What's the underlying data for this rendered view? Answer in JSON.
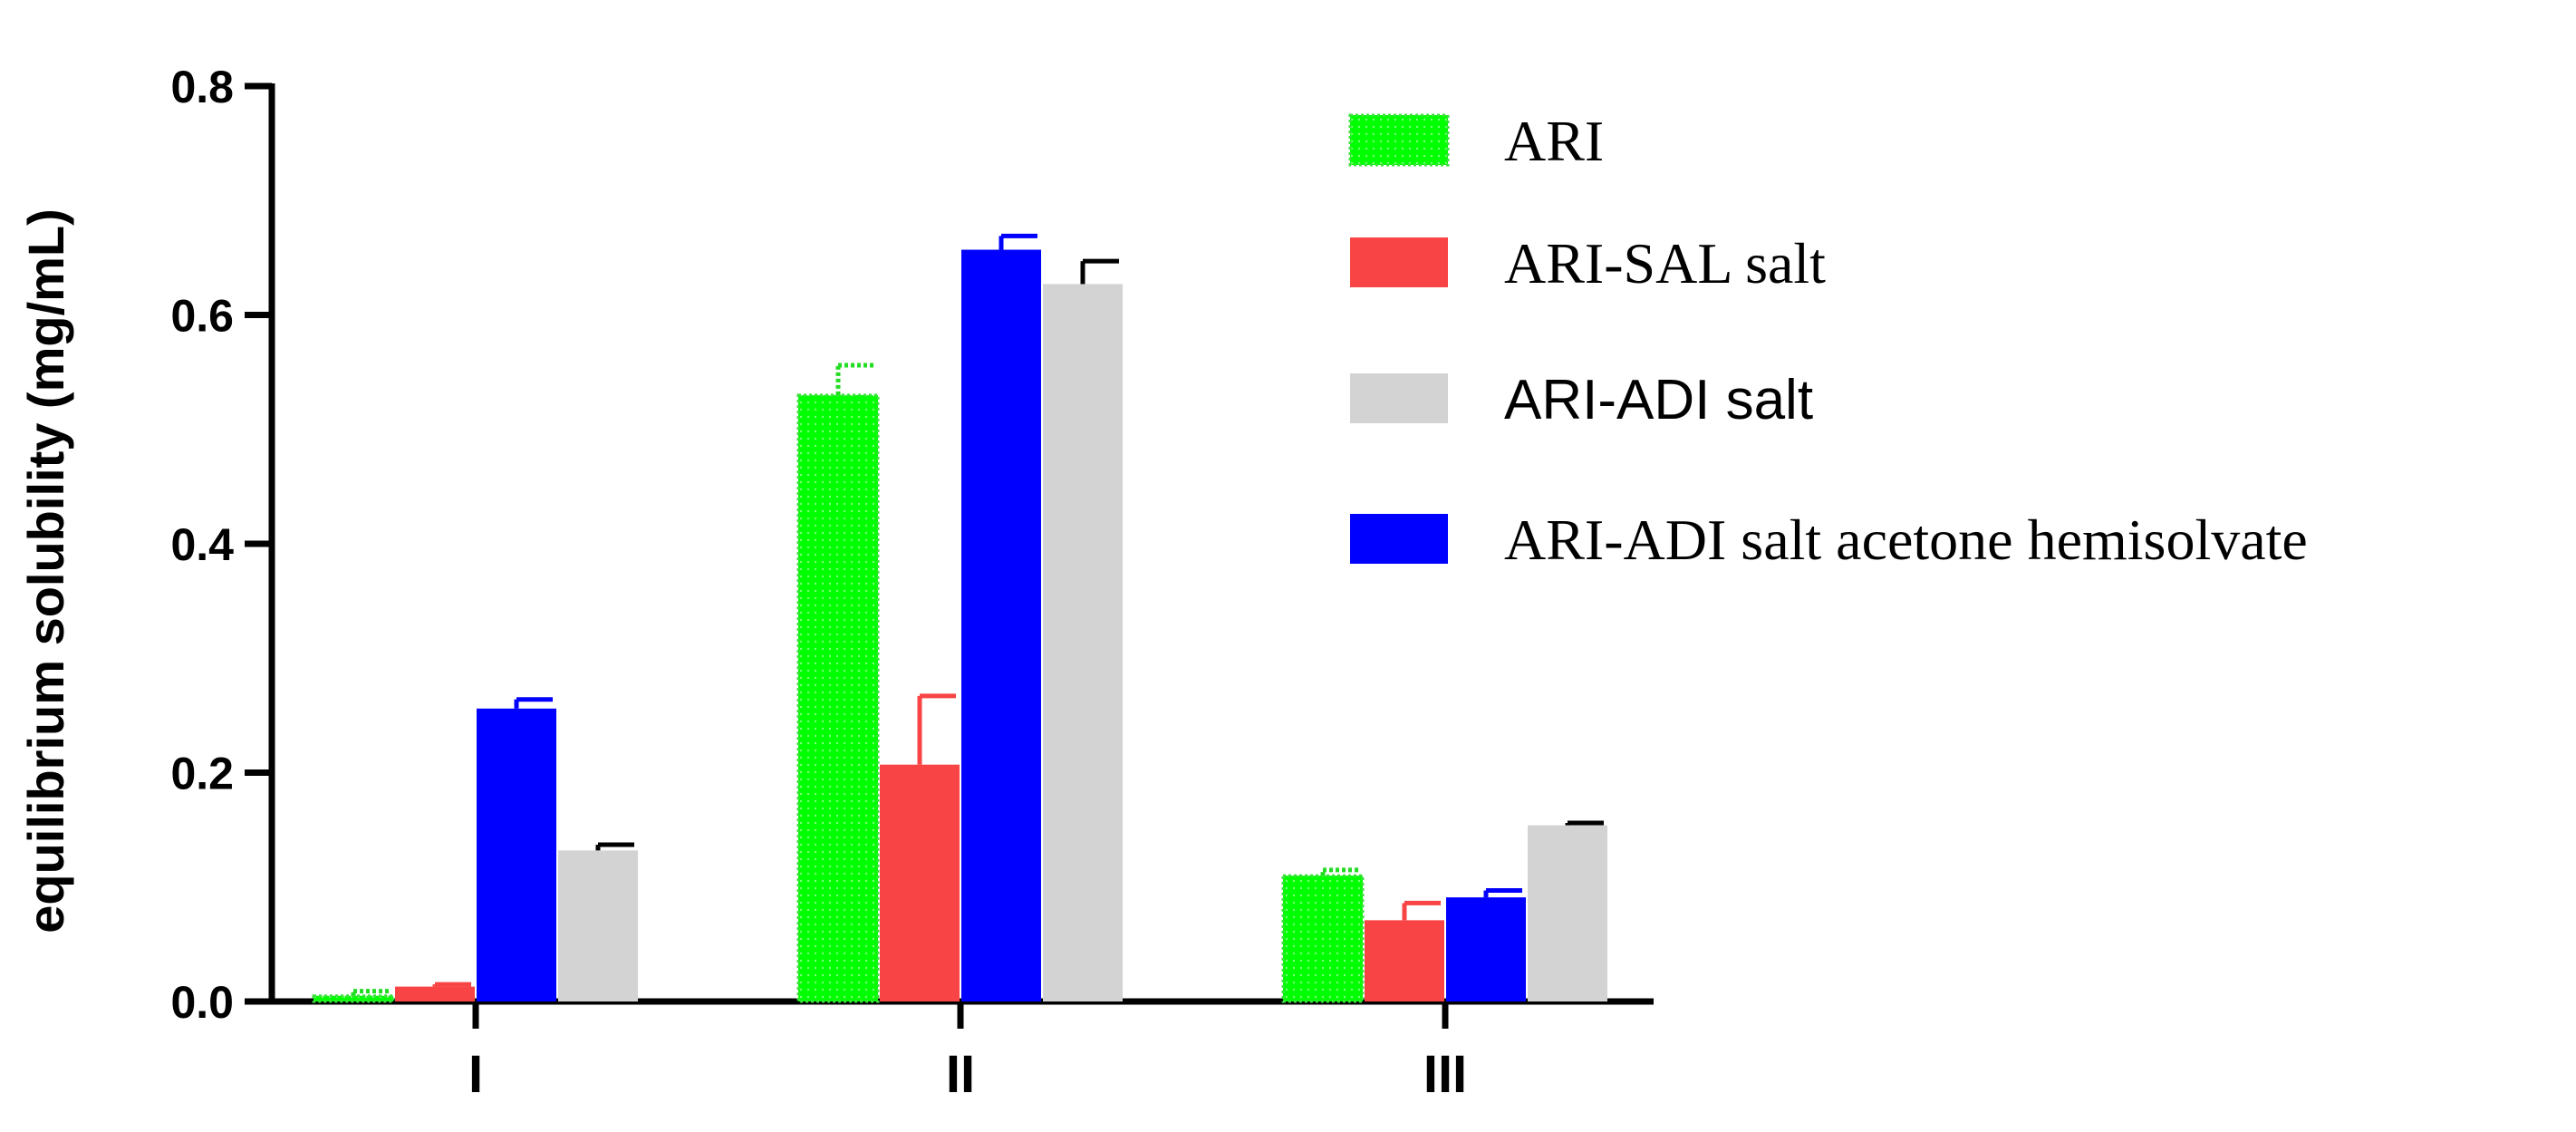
{
  "chart_data": {
    "type": "bar",
    "ylabel": "equilibrium solubility (mg/mL)",
    "xlabel": "",
    "ylim": [
      0,
      0.8
    ],
    "yticks": [
      "0.0",
      "0.2",
      "0.4",
      "0.6",
      "0.8"
    ],
    "categories": [
      "I",
      "II",
      "III"
    ],
    "legend_position": "top-right",
    "series": [
      {
        "name": "ARI",
        "color": "#00ff00",
        "pattern": "dotted-border",
        "values": [
          0.005,
          0.53,
          0.11
        ],
        "errors": [
          0.004,
          0.026,
          0.005
        ]
      },
      {
        "name": "ARI-SAL salt",
        "color": "#f84444",
        "values": [
          0.013,
          0.207,
          0.071
        ],
        "errors": [
          0.002,
          0.06,
          0.015
        ]
      },
      {
        "name": "ARI-ADI salt",
        "color": "#d3d3d3",
        "values": [
          0.132,
          0.627,
          0.154
        ],
        "errors": [
          0.005,
          0.02,
          0.002
        ]
      },
      {
        "name": "ARI-ADI salt acetone hemisolvate",
        "color": "#0000ff",
        "values": [
          0.256,
          0.657,
          0.091
        ],
        "errors": [
          0.008,
          0.012,
          0.006
        ]
      }
    ],
    "bar_order": [
      0,
      1,
      3,
      2
    ],
    "grid": false
  }
}
